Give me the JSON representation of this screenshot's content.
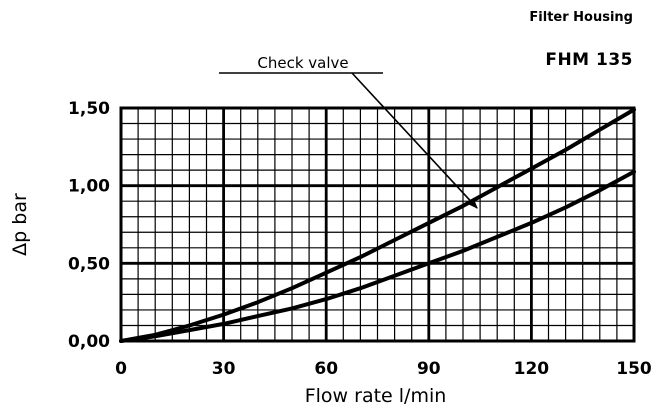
{
  "header": {
    "title": "Filter Housing",
    "model": "FHM 135"
  },
  "chart_data": {
    "type": "line",
    "title": "",
    "xlabel": "Flow rate l/min",
    "ylabel": "Δp bar",
    "xlim": [
      0,
      150
    ],
    "ylim": [
      0,
      1.5
    ],
    "x_ticks": [
      0,
      30,
      60,
      90,
      120,
      150
    ],
    "x_tick_labels": [
      "0",
      "30",
      "60",
      "90",
      "120",
      "150"
    ],
    "y_ticks": [
      0,
      0.5,
      1.0,
      1.5
    ],
    "y_tick_labels": [
      "0,00",
      "0,50",
      "1,00",
      "1,50"
    ],
    "grid": true,
    "minor_grid": {
      "x_step": 5,
      "y_step": 0.1
    },
    "series": [
      {
        "x": [
          0,
          10,
          20,
          30,
          40,
          50,
          60,
          70,
          80,
          90,
          100,
          110,
          120,
          130,
          140,
          150
        ],
        "y": [
          0,
          0.04,
          0.1,
          0.17,
          0.25,
          0.34,
          0.44,
          0.54,
          0.65,
          0.76,
          0.87,
          0.99,
          1.11,
          1.23,
          1.36,
          1.49
        ]
      },
      {
        "x": [
          0,
          10,
          20,
          30,
          40,
          50,
          60,
          70,
          80,
          90,
          100,
          110,
          120,
          130,
          140,
          150
        ],
        "y": [
          0,
          0.03,
          0.07,
          0.11,
          0.16,
          0.21,
          0.27,
          0.34,
          0.42,
          0.5,
          0.58,
          0.67,
          0.76,
          0.86,
          0.97,
          1.09
        ]
      }
    ],
    "annotations": [
      {
        "text": "Check valve",
        "x": 105,
        "y": 0.83
      }
    ],
    "colors": {
      "line": "#000000",
      "grid": "#000000",
      "background": "#ffffff"
    }
  }
}
